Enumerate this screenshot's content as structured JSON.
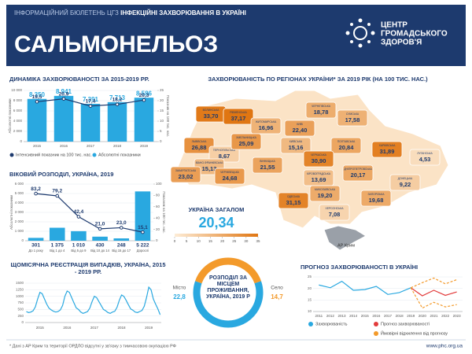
{
  "header": {
    "bulletin": "ІНФОРМАЦІЙНИЙ БЮЛЕТЕНЬ ЦГЗ",
    "topic": "ІНФЕКЦІЙНІ ЗАХВОРЮВАННЯ В УКРАЇНІ",
    "title": "САЛЬМОНЕЛЬОЗ",
    "logo": [
      "ЦЕНТР",
      "ГРОМАДСЬКОГО",
      "ЗДОРОВ'Я"
    ]
  },
  "chart_data": [
    {
      "type": "bar",
      "title": "ДИНАМІКА ЗАХВОРЮВАНОСТІ ЗА 2015-2019 РР.",
      "categories": [
        "2015",
        "2016",
        "2017",
        "2018",
        "2019"
      ],
      "y_label": "Абсолютні показники",
      "y2_label": "Показник на 100 тис. нас.",
      "ylim": [
        0,
        10000
      ],
      "yticks": [
        0,
        {
          "value": 2000,
          "label": "2 000"
        },
        {
          "value": 4000,
          "label": "4 000"
        },
        {
          "value": 6000,
          "label": "6 000"
        },
        {
          "value": 8000,
          "label": "8 000"
        },
        {
          "value": 10000,
          "label": "10 000"
        }
      ],
      "y2lim": [
        0,
        25
      ],
      "y2ticks": [
        0,
        5,
        10,
        15,
        20,
        25
      ],
      "series": [
        {
          "name": "Інтенсивний показник на 100 тис. нас.",
          "color": "#1d3a6e",
          "axis": "y2",
          "values": [
            19.5,
            20.9,
            17.4,
            18.2,
            20.3
          ],
          "value_labels": [
            "19,5",
            "20,9",
            "17,4",
            "18,2",
            "20,3"
          ]
        },
        {
          "name": "Абсолютні показники",
          "color": "#29a8e0",
          "values": [
            8350,
            8941,
            7391,
            7713,
            8586
          ],
          "value_labels": [
            "8 350",
            "8 941",
            "7 391",
            "7 713",
            "8 586"
          ]
        }
      ]
    },
    {
      "type": "bar",
      "title": "ВІКОВИЙ РОЗПОДІЛ, УКРАЇНА, 2019",
      "categories": [
        "До 1 року",
        "Від 1 до 4",
        "Від 5 до 9",
        "Від 10 до 14",
        "Від 15 до 17",
        "Дорослі"
      ],
      "y_label": "Абсолютні показники",
      "y2_label": "Показник на 100 тис. нас.",
      "ylim": [
        0,
        6000
      ],
      "yticks": [
        0,
        {
          "value": 1000,
          "label": "1 000"
        },
        {
          "value": 2000,
          "label": "2 000"
        },
        {
          "value": 3000,
          "label": "3 000"
        },
        {
          "value": 4000,
          "label": "4 000"
        },
        {
          "value": 5000,
          "label": "5 000"
        },
        {
          "value": 6000,
          "label": "6 000"
        }
      ],
      "y2lim": [
        0,
        100
      ],
      "y2ticks": [
        0,
        20,
        40,
        60,
        80,
        100
      ],
      "series": [
        {
          "color": "#29a8e0",
          "values": [
            301,
            1375,
            1010,
            430,
            248,
            5222
          ],
          "value_labels": [
            "301",
            "1 375",
            "1 010",
            "430",
            "248",
            "5 222"
          ]
        },
        {
          "color": "#1d3a6e",
          "axis": "y2",
          "values": [
            83.2,
            79.2,
            42.4,
            21.0,
            23.0,
            15.1
          ],
          "value_labels": [
            "83,2",
            "79,2",
            "42,4",
            "21,0",
            "23,0",
            "15,1"
          ]
        }
      ]
    },
    {
      "type": "line",
      "title": "ЩОМІСЯЧНА РЕЄСТРАЦІЯ ВИПАДКІВ, УКРАЇНА, 2015 - 2019 РР.",
      "categories": [
        null,
        null,
        null,
        null,
        null,
        null,
        "2015",
        null,
        null,
        null,
        null,
        null,
        null,
        null,
        null,
        null,
        null,
        null,
        "2016",
        null,
        null,
        null,
        null,
        null,
        null,
        null,
        null,
        null,
        null,
        null,
        "2017",
        null,
        null,
        null,
        null,
        null,
        null,
        null,
        null,
        null,
        null,
        null,
        "2018",
        null,
        null,
        null,
        null,
        null,
        null,
        null,
        null,
        null,
        null,
        null,
        "2019",
        null,
        null,
        null,
        null,
        null
      ],
      "ylim": [
        0,
        1500
      ],
      "yticks": [
        0,
        250,
        500,
        750,
        1000,
        1250,
        1500
      ],
      "series": [
        {
          "color": "#29a8e0",
          "values": [
            420,
            380,
            400,
            450,
            600,
            900,
            1150,
            1100,
            900,
            700,
            550,
            480,
            430,
            400,
            420,
            480,
            650,
            1000,
            1200,
            1150,
            950,
            750,
            560,
            500,
            400,
            350,
            380,
            420,
            550,
            800,
            1000,
            950,
            800,
            650,
            500,
            450,
            380,
            350,
            400,
            430,
            580,
            850,
            1050,
            1000,
            850,
            680,
            520,
            470,
            400,
            380,
            420,
            460,
            620,
            950,
            1350,
            1250,
            900,
            700,
            520,
            300
          ]
        }
      ]
    },
    {
      "type": "pie",
      "title": "РОЗПОДІЛ ЗА МІСЦЕМ ПРОЖИВАННЯ, УКРАЇНА, 2019 Р",
      "categories": [
        "Місто",
        "Село"
      ],
      "values": [
        22.8,
        14.7
      ],
      "value_labels": [
        "22,8",
        "14,7"
      ],
      "colors": [
        "#29a8e0",
        "#f39a2b"
      ]
    },
    {
      "type": "line",
      "title": "ПРОГНОЗ ЗАХВОРЮВАНОСТІ В УКРАЇНІ",
      "categories": [
        "2011",
        "2012",
        "2013",
        "2014",
        "2015",
        "2016",
        "2017",
        "2018",
        "2019",
        "2020",
        "2021",
        "2022",
        "2023"
      ],
      "ylim": [
        10,
        25
      ],
      "yticks": [
        10,
        15,
        20,
        25
      ],
      "series": [
        {
          "name": "Захворюваність",
          "color": "#29a8e0",
          "values": [
            21.5,
            20.3,
            23.1,
            19.2,
            19.5,
            20.9,
            17.4,
            18.2,
            20.3,
            null,
            null,
            null,
            null
          ]
        },
        {
          "name": "Прогноз захворюваності",
          "color": "#e23b3b",
          "values": [
            null,
            null,
            null,
            null,
            null,
            null,
            null,
            null,
            20.3,
            16.8,
            19.2,
            17.0,
            18.5
          ]
        },
        {
          "name": "Ймовірні відхилення від прогнозу",
          "color": "#f39a2b",
          "dashed": true,
          "values": [
            null,
            null,
            null,
            null,
            null,
            null,
            null,
            null,
            20.3,
            22.5,
            24.5,
            22.0,
            23.8
          ]
        },
        {
          "color": "#f39a2b",
          "dashed": true,
          "values": [
            null,
            null,
            null,
            null,
            null,
            null,
            null,
            null,
            20.3,
            11.5,
            14.0,
            12.0,
            13.0
          ]
        }
      ]
    }
  ],
  "map": {
    "title": "ЗАХВОРЮВАНІСТЬ ПО РЕГІОНАХ УКРАЇНИ* ЗА 2019 РІК (НА 100 ТИС. НАС.)",
    "regions": [
      {
        "name": "ВОЛИНСЬКА",
        "value": 33.7,
        "value_label": "33,70"
      },
      {
        "name": "РІВНЕНСЬКА",
        "value": 37.17,
        "value_label": "37,17"
      },
      {
        "name": "ЖИТОМИРСЬКА",
        "value": 16.96,
        "value_label": "16,96"
      },
      {
        "name": "КИЇВ",
        "value": 22.4,
        "value_label": "22,40"
      },
      {
        "name": "ЧЕРНІГІВСЬКА",
        "value": 18.78,
        "value_label": "18,78"
      },
      {
        "name": "СУМСЬКА",
        "value": 17.58,
        "value_label": "17,58"
      },
      {
        "name": "ЛЬВІВСЬКА",
        "value": 26.88,
        "value_label": "26,88"
      },
      {
        "name": "ТЕРНОПІЛЬСЬКА",
        "value": 8.67,
        "value_label": "8,67"
      },
      {
        "name": "ХМЕЛЬНИЦЬКА",
        "value": 25.09,
        "value_label": "25,09"
      },
      {
        "name": "КИЇВСЬКА",
        "value": 15.16,
        "value_label": "15,16"
      },
      {
        "name": "ПОЛТАВСЬКА",
        "value": 20.84,
        "value_label": "20,84"
      },
      {
        "name": "ХАРКІВСЬКА",
        "value": 31.89,
        "value_label": "31,89"
      },
      {
        "name": "ЛУГАНСЬКА",
        "value": 4.53,
        "value_label": "4,53"
      },
      {
        "name": "ІВАНО-ФРАНКІВСЬКА",
        "value": 15.13,
        "value_label": "15,13"
      },
      {
        "name": "ЗАКАРПАТСЬКА",
        "value": 23.02,
        "value_label": "23,02"
      },
      {
        "name": "ЧЕРНІВЕЦЬКА",
        "value": 24.68,
        "value_label": "24,68"
      },
      {
        "name": "ВІННИЦЬКА",
        "value": 21.55,
        "value_label": "21,55"
      },
      {
        "name": "ЧЕРКАСЬКА",
        "value": 30.9,
        "value_label": "30,90"
      },
      {
        "name": "КІРОВОГРАДСЬКА",
        "value": 13.69,
        "value_label": "13,69"
      },
      {
        "name": "ДНІПРОПЕТРОВСЬКА",
        "value": 20.17,
        "value_label": "20,17"
      },
      {
        "name": "ДОНЕЦЬКА",
        "value": 9.22,
        "value_label": "9,22"
      },
      {
        "name": "ОДЕСЬКА",
        "value": 31.15,
        "value_label": "31,15"
      },
      {
        "name": "МИКОЛАЇВСЬКА",
        "value": 19.2,
        "value_label": "19,20"
      },
      {
        "name": "ЗАПОРІЗЬКА",
        "value": 19.68,
        "value_label": "19,68"
      },
      {
        "name": "ХЕРСОНСЬКА",
        "value": 7.08,
        "value_label": "7,08"
      }
    ],
    "crimea": "АР Крим",
    "total_title": "УКРАЇНА ЗАГАЛОМ",
    "total": 20.34,
    "total_label": "20,34",
    "scale_ticks": [
      0,
      5,
      10,
      15,
      20,
      25,
      30,
      35
    ]
  },
  "footer": {
    "note": "* Дані з АР Крим та території ОРДЛО відсутні у зв'язку з тимчасовою окупацією РФ",
    "url": "www.phc.org.ua"
  }
}
